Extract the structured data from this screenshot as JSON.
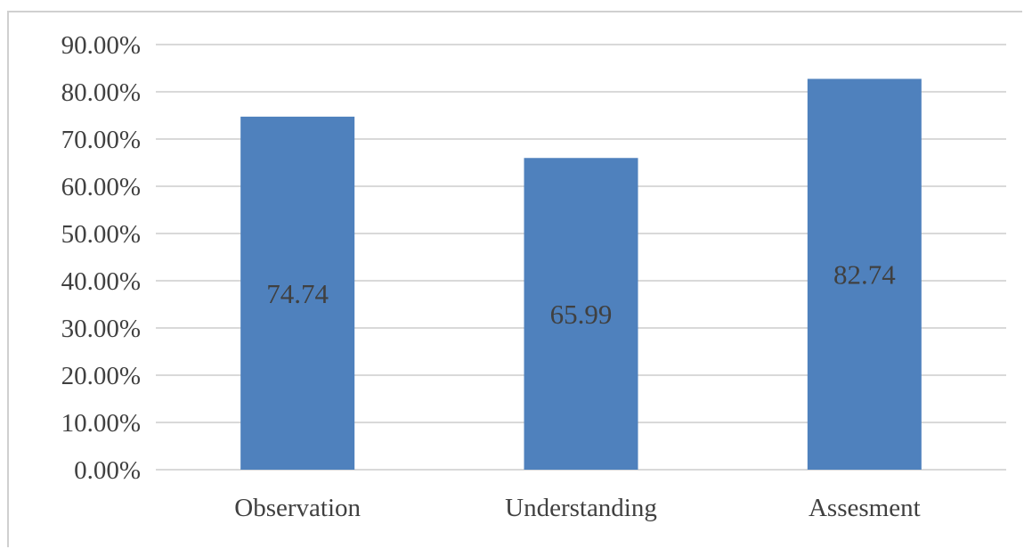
{
  "chart_data": {
    "type": "bar",
    "title": "",
    "xlabel": "",
    "ylabel": "",
    "categories": [
      "Observation",
      "Understanding",
      "Assesment"
    ],
    "values": [
      74.74,
      65.99,
      82.74
    ],
    "data_labels": [
      "74.74",
      "65.99",
      "82.74"
    ],
    "ylim": [
      0,
      90
    ],
    "y_ticks": [
      0,
      10,
      20,
      30,
      40,
      50,
      60,
      70,
      80,
      90
    ],
    "y_tick_labels": [
      "0.00%",
      "10.00%",
      "20.00%",
      "30.00%",
      "40.00%",
      "50.00%",
      "60.00%",
      "70.00%",
      "80.00%",
      "90.00%"
    ],
    "grid": true,
    "legend": "none",
    "bar_color": "#4f81bd",
    "grid_color": "#d9d9d9"
  }
}
